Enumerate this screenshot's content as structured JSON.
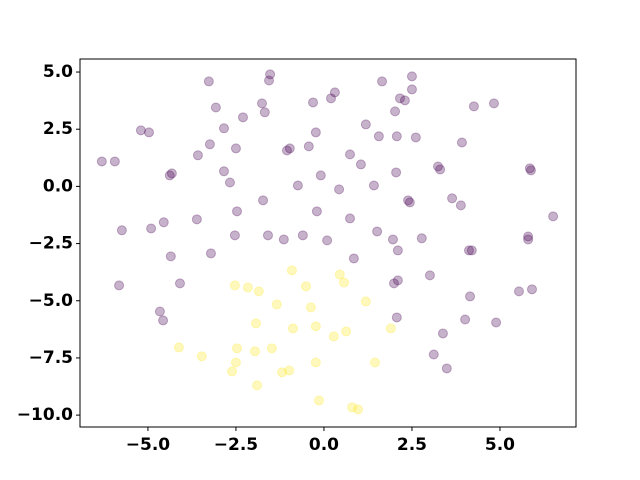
{
  "chart_data": {
    "type": "scatter",
    "xlim": [
      -6.93,
      7.16
    ],
    "ylim": [
      -10.52,
      5.57
    ],
    "xticks": [
      {
        "value": -5,
        "label": "−5.0"
      },
      {
        "value": -2.5,
        "label": "−2.5"
      },
      {
        "value": 0,
        "label": "0.0"
      },
      {
        "value": 2.5,
        "label": "2.5"
      },
      {
        "value": 5,
        "label": "5.0"
      }
    ],
    "yticks": [
      {
        "value": -10,
        "label": "−10.0"
      },
      {
        "value": -7.5,
        "label": "−7.5"
      },
      {
        "value": -5,
        "label": "−5.0"
      },
      {
        "value": -2.5,
        "label": "−2.5"
      },
      {
        "value": 0,
        "label": "0.0"
      },
      {
        "value": 2.5,
        "label": "2.5"
      },
      {
        "value": 5,
        "label": "5.0"
      }
    ],
    "grid": false,
    "series": [
      {
        "color": "#440154",
        "alpha": 0.3,
        "x": [
          -6.31,
          -5.94,
          -5.74,
          -5.82,
          -5.2,
          -4.97,
          -4.91,
          -4.66,
          -4.57,
          -4.55,
          -4.38,
          -4.32,
          -4.35,
          -4.09,
          -3.61,
          -3.58,
          -3.24,
          -3.21,
          -3.27,
          -3.07,
          -2.84,
          -2.84,
          -2.67,
          -2.53,
          -2.5,
          -2.47,
          -2.3,
          -1.76,
          -1.73,
          -1.68,
          -1.59,
          -1.14,
          -1.05,
          -0.97,
          -0.74,
          -0.6,
          -0.43,
          -0.31,
          -0.23,
          -0.2,
          -0.09,
          0.09,
          0.2,
          0.31,
          0.43,
          0.74,
          0.74,
          0.85,
          1.05,
          1.19,
          1.42,
          1.51,
          1.56,
          1.65,
          1.96,
          2.02,
          2.05,
          2.07,
          2.1,
          2.16,
          2.3,
          2.39,
          2.44,
          2.5,
          2.5,
          2.61,
          2.78,
          3.01,
          3.24,
          3.3,
          3.38,
          3.49,
          3.64,
          3.89,
          3.92,
          4.01,
          4.12,
          4.2,
          4.15,
          4.26,
          4.83,
          4.89,
          5.54,
          5.8,
          5.8,
          5.91,
          5.85,
          5.88,
          6.51,
          2.07,
          2.1,
          1.99,
          -1.53,
          -1.56,
          3.12
        ],
        "values": [
          1.09,
          1.09,
          -1.92,
          -4.33,
          2.45,
          2.36,
          -1.84,
          -5.47,
          -5.86,
          -1.57,
          0.48,
          0.57,
          -3.06,
          -4.24,
          -1.44,
          1.36,
          1.84,
          -2.93,
          4.59,
          3.45,
          0.66,
          2.54,
          0.17,
          -2.14,
          1.66,
          -1.09,
          3.02,
          3.63,
          -0.61,
          3.24,
          -2.14,
          -2.32,
          1.57,
          1.66,
          0.04,
          -2.14,
          1.75,
          3.67,
          2.36,
          -1.09,
          0.48,
          -2.36,
          3.85,
          4.11,
          -0.13,
          -1.4,
          1.4,
          -3.15,
          0.96,
          2.71,
          0.04,
          -1.97,
          2.19,
          4.59,
          -2.32,
          3.28,
          0.61,
          2.19,
          -2.8,
          3.85,
          3.76,
          -0.61,
          -0.7,
          4.81,
          4.24,
          2.14,
          -2.27,
          -3.89,
          0.87,
          0.74,
          -6.43,
          -7.96,
          -0.52,
          -0.83,
          1.92,
          -5.82,
          -2.8,
          -2.8,
          -4.81,
          3.5,
          3.63,
          -5.95,
          -4.59,
          -2.19,
          -2.32,
          -4.5,
          0.79,
          0.7,
          -1.31,
          -5.73,
          -4.11,
          -4.24,
          4.9,
          4.63,
          -7.35
        ]
      },
      {
        "color": "#fde725",
        "alpha": 0.3,
        "x": [
          -4.12,
          -3.47,
          -2.61,
          -2.53,
          -2.47,
          -2.5,
          -2.16,
          -1.96,
          -1.9,
          -1.85,
          -1.48,
          -1.34,
          -1.19,
          -0.99,
          -0.91,
          -0.88,
          -0.51,
          -0.37,
          -0.23,
          -0.23,
          -0.14,
          0.28,
          0.45,
          0.57,
          0.63,
          0.8,
          0.97,
          1.19,
          1.45,
          1.9,
          -1.93
        ],
        "values": [
          -7.04,
          -7.43,
          -8.09,
          -4.33,
          -7.08,
          -7.7,
          -4.42,
          -7.21,
          -8.7,
          -4.59,
          -7.08,
          -5.16,
          -8.13,
          -8.05,
          -3.67,
          -6.21,
          -4.37,
          -5.29,
          -6.12,
          -7.7,
          -9.36,
          -6.56,
          -3.85,
          -4.2,
          -6.34,
          -9.66,
          -9.75,
          -5.03,
          -7.7,
          -6.21,
          -5.99
        ]
      }
    ]
  }
}
